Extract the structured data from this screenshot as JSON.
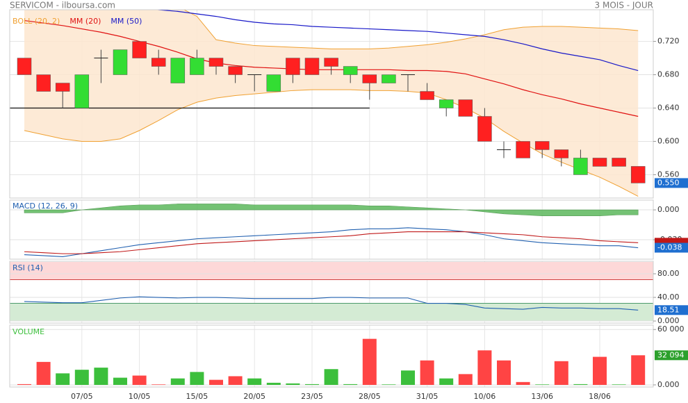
{
  "chart_data": [
    {
      "type": "candlestick",
      "title": "SERVICOM - ilboursa.com",
      "subtitle": "3 MOIS - JOUR",
      "categories": [
        null,
        null,
        null,
        "07/05",
        null,
        null,
        "10/05",
        null,
        null,
        "15/05",
        null,
        null,
        "20/05",
        null,
        null,
        "23/05",
        null,
        null,
        "28/05",
        null,
        null,
        "31/05",
        null,
        null,
        "10/06",
        null,
        null,
        "13/06",
        null,
        null,
        "18/06",
        null,
        null
      ],
      "open": [
        0.7,
        0.68,
        0.67,
        0.64,
        0.7,
        0.68,
        0.72,
        0.7,
        0.67,
        0.68,
        0.7,
        0.69,
        0.68,
        0.66,
        0.7,
        0.7,
        0.7,
        0.68,
        0.68,
        0.67,
        0.68,
        0.66,
        0.64,
        0.65,
        0.63,
        0.59,
        0.6,
        0.6,
        0.59,
        0.56,
        0.58,
        0.58,
        0.57
      ],
      "high": [
        0.7,
        0.68,
        0.67,
        0.68,
        0.71,
        0.71,
        0.72,
        0.71,
        0.7,
        0.71,
        0.7,
        0.69,
        0.68,
        0.68,
        0.7,
        0.7,
        0.7,
        0.69,
        0.68,
        0.68,
        0.68,
        0.67,
        0.65,
        0.65,
        0.64,
        0.6,
        0.6,
        0.6,
        0.59,
        0.59,
        0.58,
        0.58,
        0.57
      ],
      "low": [
        0.68,
        0.66,
        0.64,
        0.64,
        0.67,
        0.68,
        0.7,
        0.68,
        0.67,
        0.68,
        0.68,
        0.67,
        0.66,
        0.66,
        0.67,
        0.68,
        0.68,
        0.67,
        0.65,
        0.67,
        0.66,
        0.65,
        0.63,
        0.63,
        0.6,
        0.58,
        0.58,
        0.58,
        0.57,
        0.56,
        0.57,
        0.57,
        0.55
      ],
      "close": [
        0.68,
        0.66,
        0.66,
        0.68,
        0.7,
        0.71,
        0.7,
        0.69,
        0.7,
        0.7,
        0.69,
        0.68,
        0.68,
        0.68,
        0.68,
        0.68,
        0.69,
        0.69,
        0.67,
        0.68,
        0.68,
        0.65,
        0.65,
        0.63,
        0.6,
        0.59,
        0.58,
        0.59,
        0.58,
        0.58,
        0.57,
        0.57,
        0.55
      ],
      "up_color": "#33dd33",
      "down_color": "#ff2020",
      "series": [
        {
          "name": "BOLL (20, 2)",
          "color": "#f0a030",
          "upper": [
            0.77,
            0.77,
            0.77,
            0.77,
            0.77,
            0.77,
            0.77,
            0.768,
            0.762,
            0.75,
            0.722,
            0.718,
            0.715,
            0.714,
            0.713,
            0.712,
            0.711,
            0.711,
            0.711,
            0.712,
            0.714,
            0.716,
            0.719,
            0.723,
            0.728,
            0.734,
            0.737,
            0.738,
            0.738,
            0.737,
            0.736,
            0.735,
            0.733
          ],
          "lower": [
            0.613,
            0.608,
            0.603,
            0.6,
            0.6,
            0.603,
            0.613,
            0.625,
            0.638,
            0.647,
            0.652,
            0.655,
            0.657,
            0.659,
            0.661,
            0.662,
            0.662,
            0.662,
            0.661,
            0.661,
            0.66,
            0.658,
            0.65,
            0.64,
            0.628,
            0.612,
            0.598,
            0.585,
            0.575,
            0.566,
            0.557,
            0.546,
            0.534
          ]
        },
        {
          "name": "MM (20)",
          "color": "#e01010",
          "values": [
            0.745,
            0.742,
            0.739,
            0.735,
            0.731,
            0.726,
            0.72,
            0.714,
            0.707,
            0.699,
            0.694,
            0.691,
            0.689,
            0.688,
            0.687,
            0.686,
            0.686,
            0.686,
            0.686,
            0.686,
            0.685,
            0.685,
            0.684,
            0.681,
            0.675,
            0.669,
            0.662,
            0.656,
            0.651,
            0.645,
            0.64,
            0.635,
            0.63
          ]
        },
        {
          "name": "MM (50)",
          "color": "#1818c8",
          "values": [
            0.772,
            0.77,
            0.768,
            0.766,
            0.764,
            0.762,
            0.76,
            0.758,
            0.756,
            0.753,
            0.75,
            0.746,
            0.743,
            0.741,
            0.74,
            0.738,
            0.737,
            0.736,
            0.735,
            0.734,
            0.733,
            0.732,
            0.73,
            0.728,
            0.726,
            0.722,
            0.717,
            0.711,
            0.706,
            0.702,
            0.698,
            0.691,
            0.685
          ]
        }
      ],
      "hlines": [
        {
          "value": 0.64,
          "end": 18
        }
      ],
      "ylim": [
        0.532,
        0.758
      ],
      "yticks": [
        {
          "value": 0.56,
          "label": "0.560"
        },
        {
          "value": 0.6,
          "label": "0.600"
        },
        {
          "value": 0.64,
          "label": "0.640"
        },
        {
          "value": 0.68,
          "label": "0.680"
        },
        {
          "value": 0.72,
          "label": "0.720"
        }
      ],
      "last": {
        "value": 0.55,
        "label": "0.550"
      }
    },
    {
      "type": "macd",
      "title": "MACD (12, 26, 9)",
      "series": [
        {
          "color": "#2060b0",
          "values": [
            -0.045,
            -0.046,
            -0.047,
            -0.044,
            -0.041,
            -0.038,
            -0.035,
            -0.033,
            -0.031,
            -0.029,
            -0.028,
            -0.027,
            -0.026,
            -0.025,
            -0.024,
            -0.023,
            -0.022,
            -0.02,
            -0.019,
            -0.019,
            -0.018,
            -0.019,
            -0.02,
            -0.022,
            -0.025,
            -0.029,
            -0.031,
            -0.033,
            -0.034,
            -0.035,
            -0.036,
            -0.036,
            -0.038
          ]
        },
        {
          "color": "#c01818",
          "values": [
            -0.042,
            -0.043,
            -0.044,
            -0.044,
            -0.043,
            -0.042,
            -0.04,
            -0.038,
            -0.036,
            -0.034,
            -0.033,
            -0.032,
            -0.031,
            -0.03,
            -0.029,
            -0.028,
            -0.027,
            -0.026,
            -0.024,
            -0.023,
            -0.022,
            -0.022,
            -0.022,
            -0.022,
            -0.023,
            -0.024,
            -0.025,
            -0.027,
            -0.028,
            -0.029,
            -0.031,
            -0.032,
            -0.033
          ]
        }
      ],
      "histogram": {
        "color": "#5cb85c",
        "values": [
          -0.003,
          -0.003,
          -0.003,
          0.0,
          0.002,
          0.004,
          0.005,
          0.005,
          0.006,
          0.006,
          0.006,
          0.006,
          0.005,
          0.005,
          0.005,
          0.005,
          0.005,
          0.005,
          0.004,
          0.004,
          0.003,
          0.002,
          0.001,
          0.0,
          -0.002,
          -0.004,
          -0.005,
          -0.006,
          -0.006,
          -0.006,
          -0.006,
          -0.005,
          -0.005
        ]
      },
      "ylim": [
        -0.0495,
        0.0098
      ],
      "yticks": [
        {
          "value": -0.03,
          "label": "-0.030"
        },
        {
          "value": 0,
          "label": "0.000"
        }
      ],
      "last": {
        "value": -0.038,
        "label": "-0.038"
      }
    },
    {
      "type": "rsi",
      "title": "RSI (14)",
      "color": "#2060b0",
      "values": [
        33,
        32,
        31,
        31,
        35,
        39,
        41,
        40,
        39,
        40,
        40,
        39,
        38,
        38,
        38,
        38,
        40,
        40,
        39,
        39,
        39,
        30,
        30,
        28,
        22,
        21,
        20,
        23,
        22,
        22,
        21,
        21,
        18.51
      ],
      "zones": [
        {
          "from": 70,
          "to": 100,
          "color": "#fdd8d8",
          "line": "#d04040"
        },
        {
          "from": 0,
          "to": 30,
          "color": "#d4ebd4",
          "line": "#4a9a6a"
        }
      ],
      "ylim": [
        -3.5,
        101.2
      ],
      "yticks": [
        {
          "value": 0,
          "label": "0.000"
        },
        {
          "value": 40,
          "label": "40.00"
        },
        {
          "value": 80,
          "label": "80.00"
        }
      ],
      "last": {
        "value": 18.51,
        "label": "18.51"
      }
    },
    {
      "type": "bar",
      "title": "VOLUME",
      "values": [
        800,
        24900,
        12500,
        16400,
        18700,
        7800,
        10100,
        500,
        7000,
        14000,
        5500,
        9400,
        7000,
        2300,
        1600,
        800,
        17100,
        800,
        49900,
        500,
        15600,
        26500,
        7000,
        11700,
        37400,
        26500,
        3100,
        500,
        25700,
        800,
        30400,
        500,
        32094
      ],
      "colors": [
        "#ff4444",
        "#ff4444",
        "#3cbf3c",
        "#3cbf3c",
        "#3cbf3c",
        "#3cbf3c",
        "#ff4444",
        "#ff4444",
        "#3cbf3c",
        "#3cbf3c",
        "#ff4444",
        "#ff4444",
        "#3cbf3c",
        "#3cbf3c",
        "#3cbf3c",
        "#3cbf3c",
        "#3cbf3c",
        "#3cbf3c",
        "#ff4444",
        "#3cbf3c",
        "#3cbf3c",
        "#ff4444",
        "#3cbf3c",
        "#ff4444",
        "#ff4444",
        "#ff4444",
        "#ff4444",
        "#3cbf3c",
        "#ff4444",
        "#3cbf3c",
        "#ff4444",
        "#3cbf3c",
        "#ff4444"
      ],
      "ylim": [
        -2300,
        64700
      ],
      "yticks": [
        {
          "value": 0,
          "label": "0.000"
        },
        {
          "value": 60000,
          "label": "60 000"
        }
      ],
      "last": {
        "value": 32094,
        "label": "32 094"
      }
    }
  ]
}
